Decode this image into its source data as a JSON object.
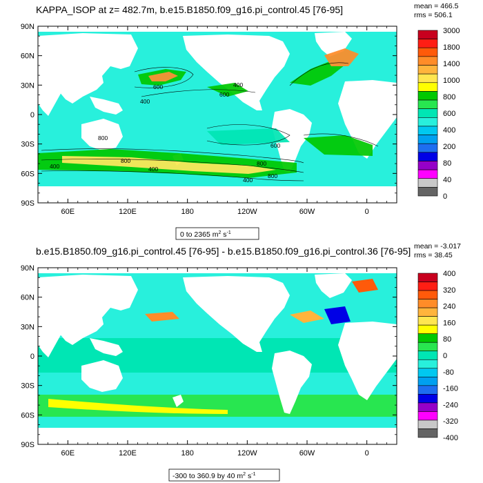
{
  "panels": [
    {
      "title": "KAPPA_ISOP at z= 482.7m, b.e15.B1850.f09_g16.pi_control.45 [76-95]",
      "stats": [
        "mean = 466.5",
        "rms = 506.1"
      ],
      "range_label": "0 to 2365 m",
      "range_unit_sup": "2",
      "range_unit_tail": " s",
      "range_unit_sup2": "-1",
      "colorbar_labels": [
        "3000",
        "1800",
        "1400",
        "1000",
        "800",
        "600",
        "400",
        "200",
        "80",
        "40",
        "0"
      ],
      "colorbar_colors": [
        "#c8001e",
        "#ff1e14",
        "#ff5a0a",
        "#ff8c28",
        "#ffb43c",
        "#ffe650",
        "#ffff00",
        "#00c800",
        "#28e650",
        "#00e6b4",
        "#28f0dc",
        "#00c8f0",
        "#00a0f0",
        "#1e6ef0",
        "#0000e6",
        "#9600c8",
        "#ff00ff",
        "#c8c8c8",
        "#646464"
      ],
      "contour_labels": [
        "600",
        "400",
        "600",
        "400",
        "800",
        "400",
        "600",
        "800",
        "400",
        "800",
        "400",
        "800"
      ]
    },
    {
      "title": "b.e15.B1850.f09_g16.pi_control.45 [76-95] - b.e15.B1850.f09_g16.pi_control.36 [76-95]",
      "stats": [
        "mean = -3.017",
        "rms = 38.45"
      ],
      "range_label": "-300 to 360.9 by 40 m",
      "range_unit_sup": "2",
      "range_unit_tail": " s",
      "range_unit_sup2": "-1",
      "colorbar_labels": [
        "400",
        "320",
        "240",
        "160",
        "80",
        "0",
        "-80",
        "-160",
        "-240",
        "-320",
        "-400"
      ],
      "colorbar_colors": [
        "#c8001e",
        "#ff1e14",
        "#ff5a0a",
        "#ff8c28",
        "#ffb43c",
        "#ffe650",
        "#ffff00",
        "#00c800",
        "#28e650",
        "#00e6b4",
        "#28f0dc",
        "#00c8f0",
        "#00a0f0",
        "#1e6ef0",
        "#0000e6",
        "#9600c8",
        "#ff00ff",
        "#c8c8c8",
        "#646464"
      ],
      "contour_labels": []
    }
  ],
  "chart_data": [
    {
      "type": "heatmap",
      "title": "KAPPA_ISOP at z= 482.7m, b.e15.B1850.f09_g16.pi_control.45 [76-95]",
      "y_tick_labels": [
        "90N",
        "60N",
        "30N",
        "0",
        "30S",
        "60S",
        "90S"
      ],
      "x_tick_labels": [
        "60E",
        "120E",
        "180",
        "120W",
        "60W",
        "0"
      ],
      "lat_range": [
        -90,
        90
      ],
      "lon_range": [
        30,
        390
      ],
      "value_range": [
        0,
        2365
      ],
      "stats": {
        "mean": 466.5,
        "rms": 506.1
      },
      "colorbar_levels": [
        3000,
        1800,
        1400,
        1000,
        800,
        600,
        400,
        200,
        80,
        40,
        0
      ]
    },
    {
      "type": "heatmap",
      "title": "b.e15.B1850.f09_g16.pi_control.45 [76-95] - b.e15.B1850.f09_g16.pi_control.36 [76-95]",
      "y_tick_labels": [
        "90N",
        "60N",
        "30N",
        "0",
        "30S",
        "60S",
        "90S"
      ],
      "x_tick_labels": [
        "60E",
        "120E",
        "180",
        "120W",
        "60W",
        "0"
      ],
      "lat_range": [
        -90,
        90
      ],
      "lon_range": [
        30,
        390
      ],
      "value_range": [
        -300,
        360.9
      ],
      "contour_interval": 40,
      "stats": {
        "mean": -3.017,
        "rms": 38.45
      },
      "colorbar_levels": [
        400,
        320,
        240,
        160,
        80,
        0,
        -80,
        -160,
        -240,
        -320,
        -400
      ]
    }
  ]
}
